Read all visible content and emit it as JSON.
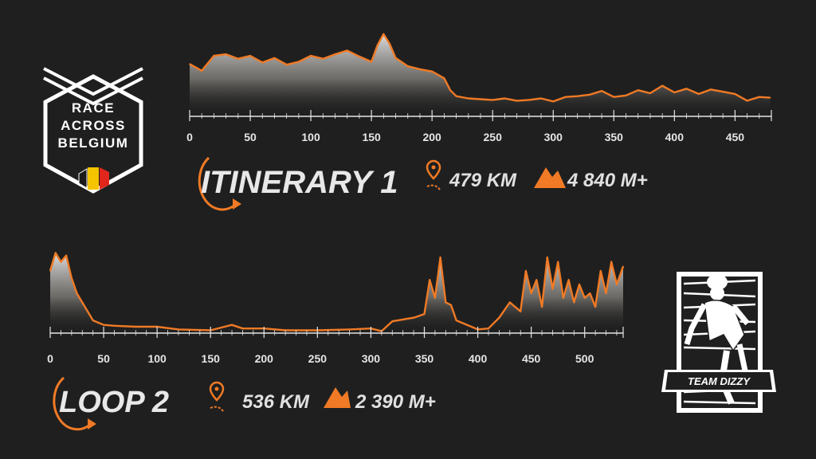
{
  "logo": {
    "lines": [
      "RACE",
      "ACROSS",
      "BELGIUM"
    ],
    "flag_colors": [
      "#1a1a1a",
      "#f5c400",
      "#e1261c"
    ]
  },
  "team_badge": {
    "label": "TEAM DIZZY"
  },
  "colors": {
    "background": "#1f1f1f",
    "line": "#f07a25",
    "axis": "#e6e6e6",
    "fill_top": "#e6e6e6",
    "fill_bottom": "#1f1f1f"
  },
  "icons": {
    "route": "route-pin-icon",
    "elevation": "mountain-icon",
    "cycle": "circular-arrow-icon"
  },
  "routes": [
    {
      "title": "ITINERARY 1",
      "distance": "479 KM",
      "elevation": "4 840 M+"
    },
    {
      "title": "LOOP 2",
      "distance": "536 KM",
      "elevation": "2 390 M+"
    }
  ],
  "chart_data": [
    {
      "type": "area",
      "title": "",
      "xlabel": "",
      "ylabel": "",
      "x_ticks": [
        0,
        50,
        100,
        150,
        200,
        250,
        300,
        350,
        400,
        450
      ],
      "xlim": [
        0,
        480
      ],
      "ylim": [
        0,
        100
      ],
      "grid": false,
      "x": [
        0,
        10,
        20,
        30,
        40,
        50,
        60,
        70,
        80,
        90,
        100,
        110,
        120,
        130,
        140,
        150,
        155,
        160,
        165,
        170,
        180,
        190,
        200,
        210,
        215,
        220,
        230,
        240,
        250,
        260,
        270,
        280,
        290,
        300,
        310,
        320,
        330,
        340,
        350,
        360,
        370,
        380,
        390,
        400,
        410,
        420,
        430,
        440,
        450,
        460,
        470,
        479
      ],
      "y": [
        55,
        46,
        66,
        68,
        62,
        66,
        57,
        63,
        54,
        58,
        66,
        62,
        68,
        73,
        65,
        58,
        80,
        95,
        82,
        63,
        52,
        48,
        45,
        36,
        20,
        12,
        9,
        8,
        7,
        9,
        6,
        7,
        9,
        5,
        11,
        12,
        14,
        19,
        11,
        13,
        20,
        16,
        26,
        17,
        22,
        15,
        21,
        18,
        15,
        6,
        11,
        10
      ]
    },
    {
      "type": "area",
      "title": "",
      "xlabel": "",
      "ylabel": "",
      "x_ticks": [
        0,
        50,
        100,
        150,
        200,
        250,
        300,
        350,
        400,
        450,
        500
      ],
      "xlim": [
        0,
        536
      ],
      "ylim": [
        0,
        100
      ],
      "grid": false,
      "x": [
        0,
        5,
        10,
        15,
        20,
        25,
        30,
        40,
        50,
        60,
        80,
        100,
        120,
        150,
        170,
        180,
        200,
        220,
        250,
        280,
        300,
        310,
        320,
        330,
        340,
        350,
        355,
        360,
        365,
        370,
        375,
        380,
        400,
        410,
        420,
        430,
        440,
        445,
        450,
        455,
        460,
        465,
        470,
        475,
        480,
        485,
        490,
        495,
        500,
        505,
        510,
        515,
        520,
        525,
        530,
        536
      ],
      "y": [
        70,
        90,
        80,
        87,
        62,
        45,
        35,
        15,
        10,
        9,
        8,
        8,
        5,
        4,
        10,
        6,
        6,
        4,
        4,
        5,
        6,
        3,
        14,
        16,
        18,
        22,
        60,
        40,
        85,
        35,
        32,
        15,
        5,
        6,
        18,
        35,
        25,
        70,
        45,
        60,
        30,
        85,
        50,
        80,
        40,
        60,
        35,
        55,
        40,
        45,
        30,
        70,
        45,
        80,
        55,
        75
      ]
    }
  ]
}
